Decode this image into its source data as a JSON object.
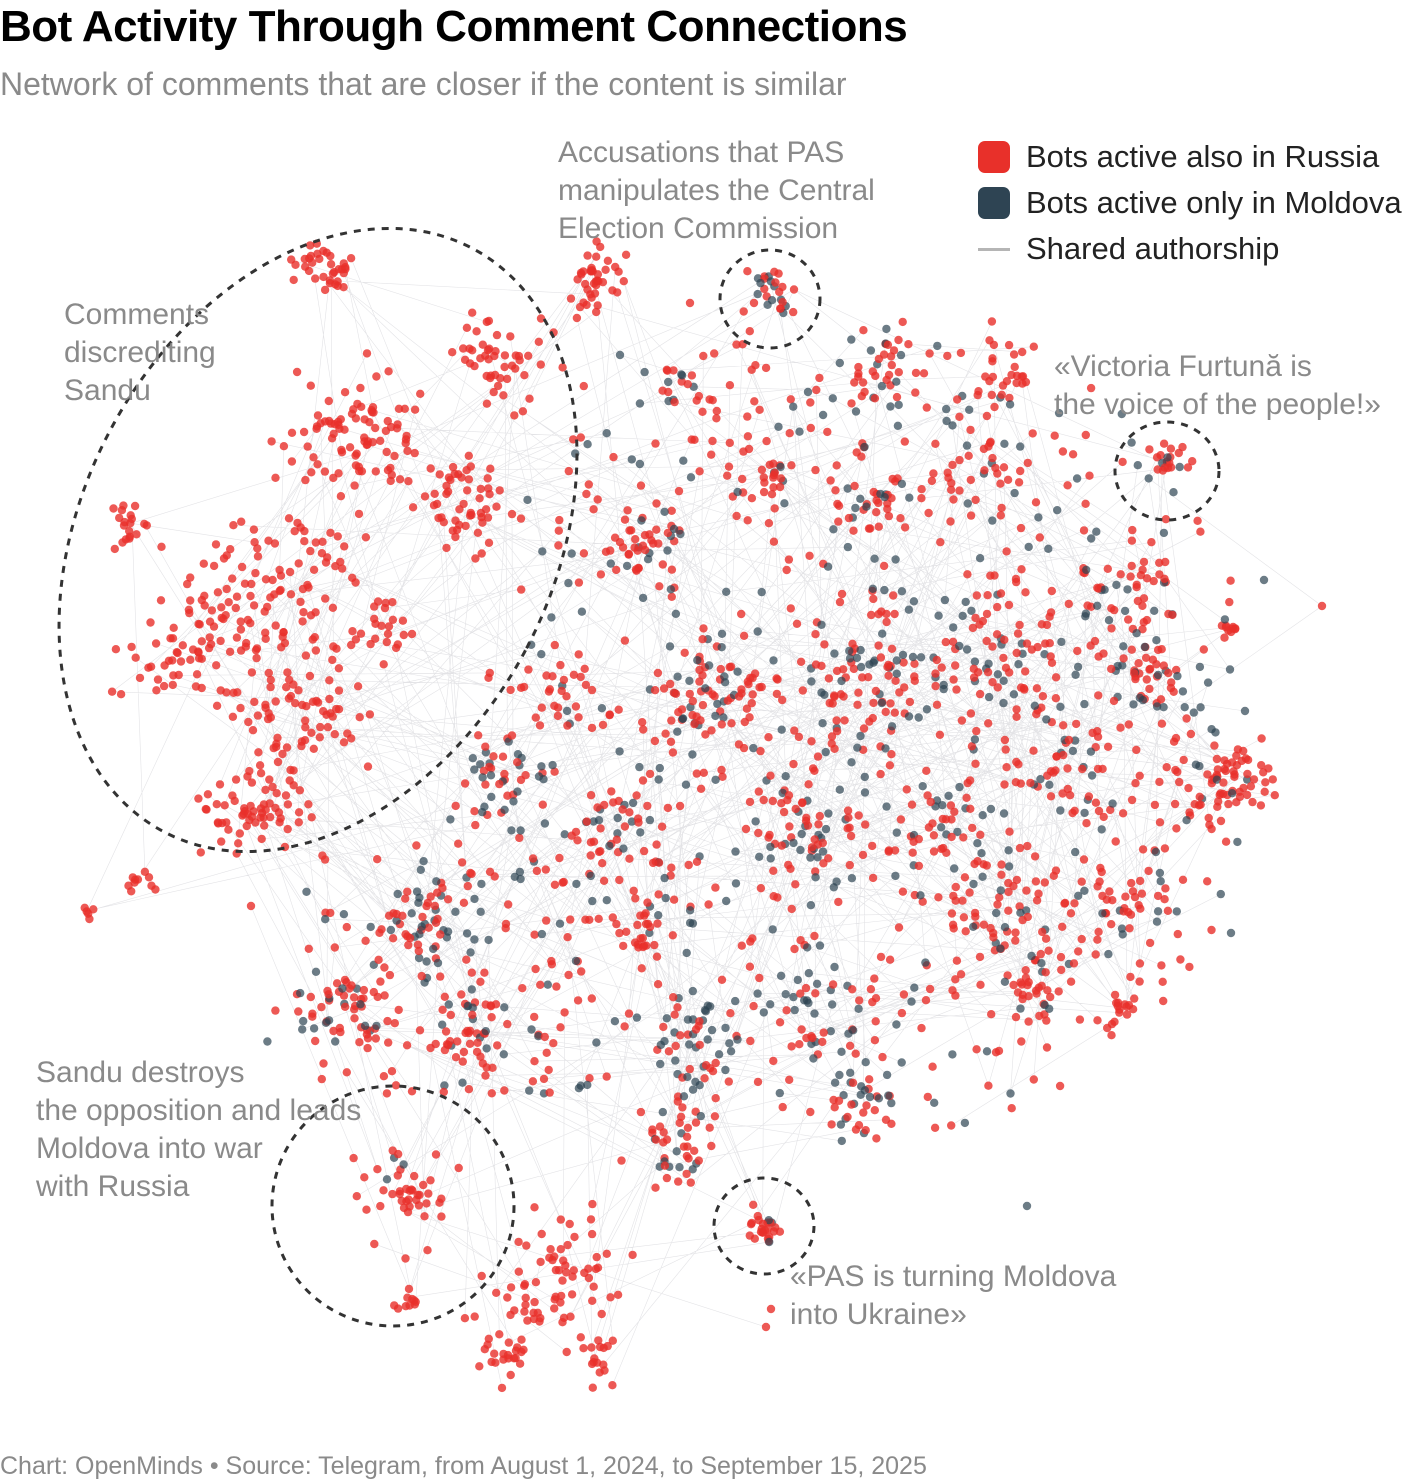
{
  "chart_data": {
    "type": "scatter",
    "title": "Bot Activity Through Comment Connections",
    "subtitle": "Network of comments that are closer if the content is similar",
    "legend": [
      {
        "label": "Bots active also in Russia",
        "color": "#e8302a",
        "kind": "square"
      },
      {
        "label": "Bots active only in Moldova",
        "color": "#2e4453",
        "kind": "square"
      },
      {
        "label": "Shared authorship",
        "color": "#b5b5b5",
        "kind": "line"
      }
    ],
    "legend_position": "top-right",
    "annotations": [
      {
        "id": "sandu",
        "lines": [
          "Comments",
          "discrediting",
          "Sandu"
        ]
      },
      {
        "id": "cec",
        "lines": [
          "Accusations that PAS",
          "manipulates the Central",
          "Election Commission"
        ]
      },
      {
        "id": "furtuna",
        "lines": [
          "«Victoria Furtună is",
          "the voice of the people!»"
        ]
      },
      {
        "id": "war",
        "lines": [
          "Sandu destroys",
          "the opposition and leads",
          "Moldova into war",
          "with Russia"
        ]
      },
      {
        "id": "ukraine",
        "lines": [
          "«PAS is turning Moldova",
          "into Ukraine»"
        ]
      }
    ],
    "axes": "none",
    "grid": false
  },
  "colors": {
    "russia": "#e8302a",
    "moldova": "#2e4453",
    "edge": "#d7d7dc"
  },
  "footer": "Chart: OpenMinds • Source: Telegram, from August 1, 2024, to September 15, 2025"
}
